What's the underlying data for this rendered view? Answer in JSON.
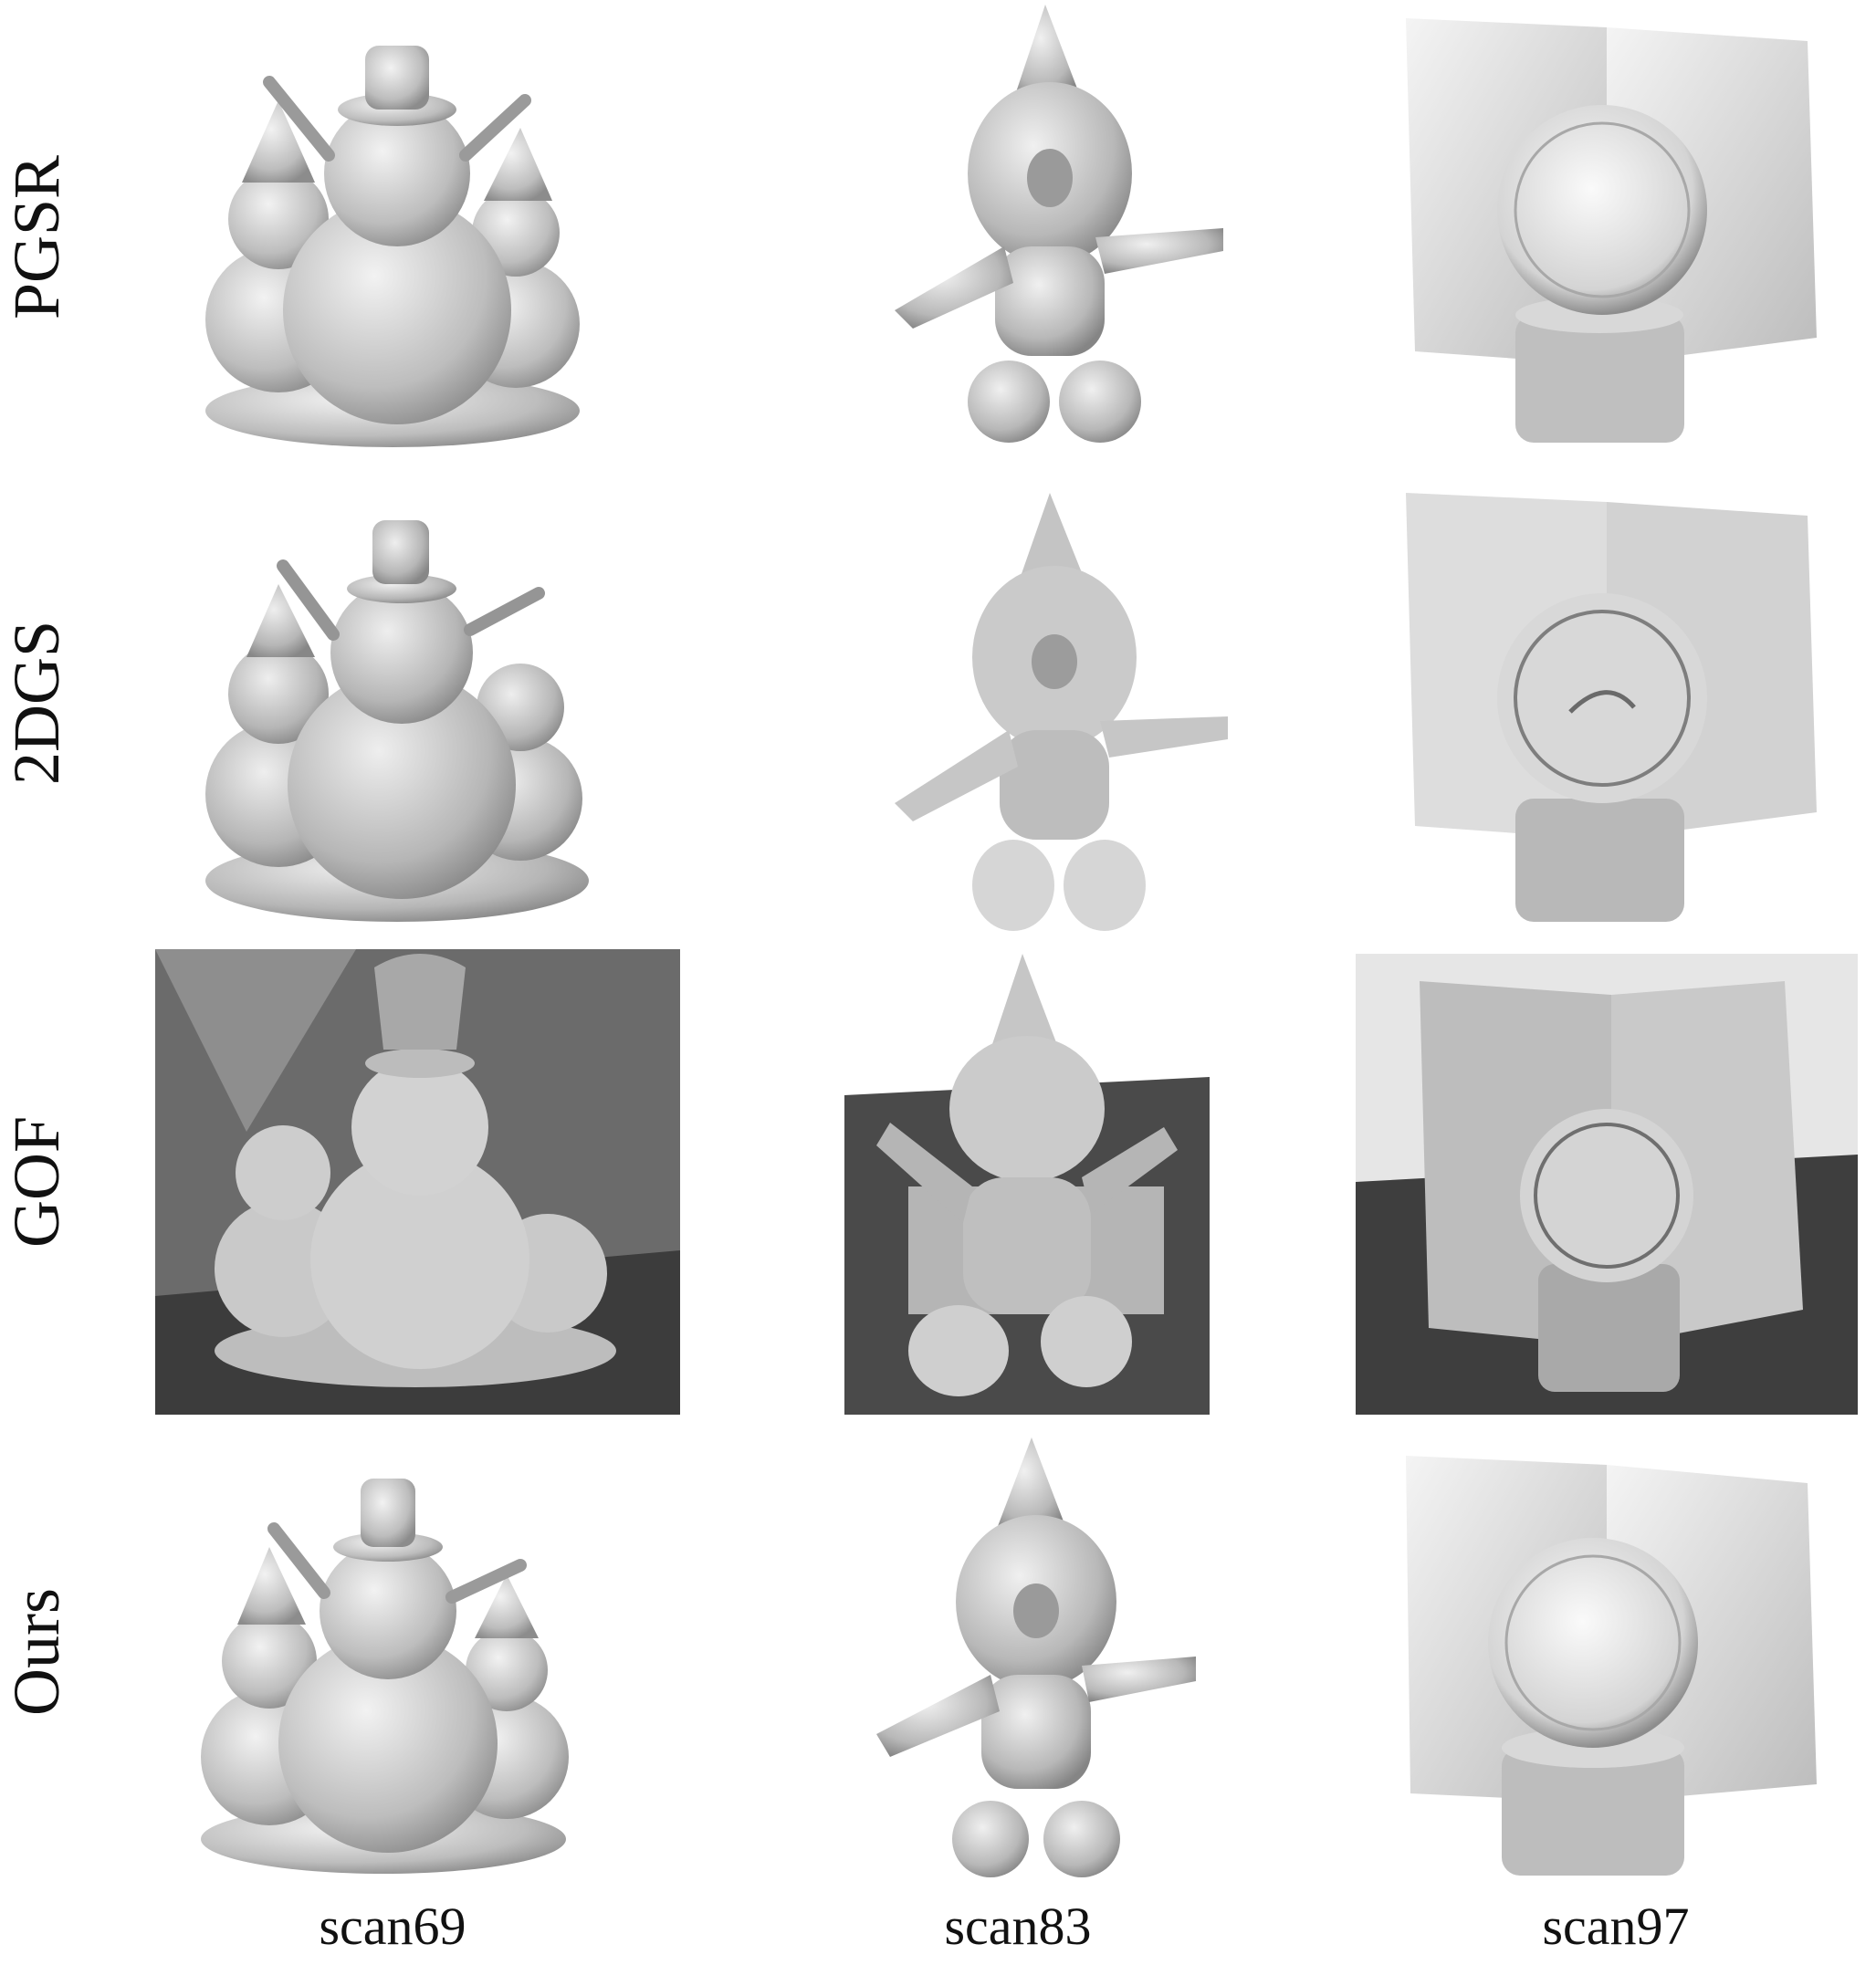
{
  "rows": [
    {
      "label": "PGSR"
    },
    {
      "label": "2DGS"
    },
    {
      "label": "GOF"
    },
    {
      "label": "Ours"
    }
  ],
  "columns": [
    {
      "label": "scan69"
    },
    {
      "label": "scan83"
    },
    {
      "label": "scan97"
    }
  ],
  "colors": {
    "mesh": "#cfcfcf",
    "mesh_shadow": "#8a8a8a",
    "gof_background": "#5a5a5a",
    "gof_floor": "#3c3c3c"
  }
}
